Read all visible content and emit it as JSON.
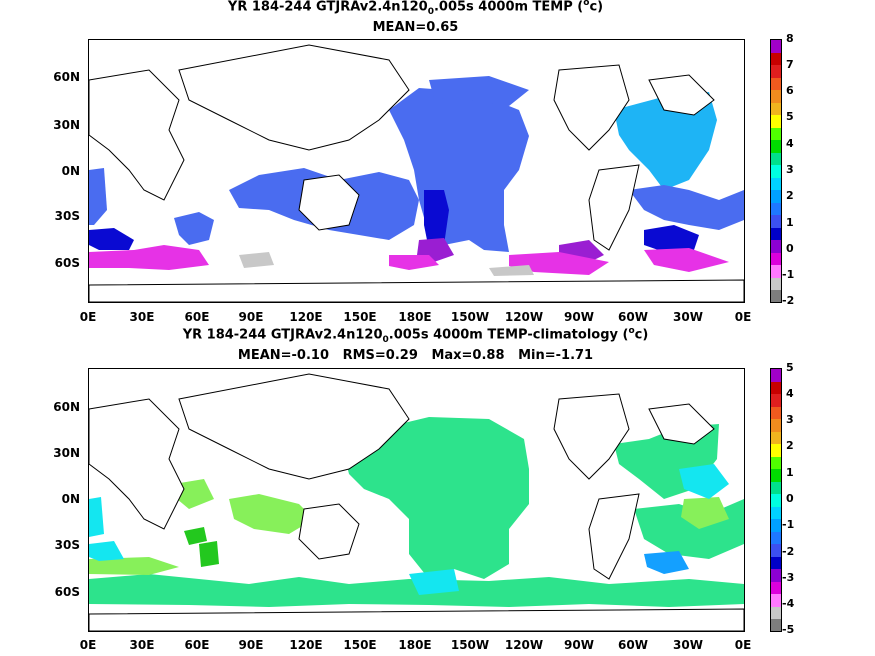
{
  "panel_top": {
    "title_prefix": "YR 184-244 GTJRAv2.4n120",
    "title_sub": "0",
    "title_mid": ".005s 4000m TEMP (",
    "title_sup": "o",
    "title_end": "c)",
    "stats": "MEAN=0.65",
    "colorbar_labels": [
      "8",
      "7",
      "6",
      "5",
      "4",
      "3",
      "2",
      "1",
      "0",
      "-1",
      "-2"
    ],
    "colorbar_colors": [
      "#a000c8",
      "#c80000",
      "#e01e1e",
      "#f05a1e",
      "#f08c1e",
      "#f0b41e",
      "#ffff00",
      "#50ff00",
      "#00dc00",
      "#00e08c",
      "#00ffe0",
      "#00d2ff",
      "#00a0ff",
      "#1e78ff",
      "#3c50f0",
      "#0000c8",
      "#8c00d2",
      "#dc00dc",
      "#ff78ff",
      "#c8c8c8",
      "#7d7d7d"
    ]
  },
  "panel_bottom": {
    "title_prefix": "YR 184-244 GTJRAv2.4n120",
    "title_sub": "0",
    "title_mid": ".005s 4000m TEMP-climatology (",
    "title_sup": "o",
    "title_end": "c)",
    "stats": "MEAN=-0.10   RMS=0.29   Max=0.88   Min=-1.71",
    "colorbar_labels": [
      "5",
      "4",
      "3",
      "2",
      "1",
      "0",
      "-1",
      "-2",
      "-3",
      "-4",
      "-5"
    ],
    "colorbar_colors": [
      "#a000c8",
      "#c80000",
      "#e01e1e",
      "#f05a1e",
      "#f08c1e",
      "#f0b41e",
      "#ffff00",
      "#50ff00",
      "#00dc00",
      "#00e08c",
      "#00ffe0",
      "#00d2ff",
      "#00a0ff",
      "#1e78ff",
      "#3c50f0",
      "#0000c8",
      "#8c00d2",
      "#dc00dc",
      "#ff78ff",
      "#c8c8c8",
      "#7d7d7d"
    ]
  },
  "axes": {
    "lat_labels": [
      "60N",
      "30N",
      "0N",
      "30S",
      "60S"
    ],
    "lon_labels": [
      "0E",
      "30E",
      "60E",
      "90E",
      "120E",
      "150E",
      "180E",
      "150W",
      "120W",
      "90W",
      "60W",
      "30W",
      "0E"
    ]
  },
  "fill_colors": {
    "top_main": "#4a6cf0",
    "top_light": "#1eb4f5",
    "top_dark": "#0a0ad2",
    "top_magenta": "#e632e6",
    "top_purple": "#9a1ed2",
    "top_gray": "#c8c8c8",
    "bot_main": "#2de38c",
    "bot_light": "#87f05a",
    "bot_green": "#23c81e",
    "bot_cyan": "#14e6f0",
    "bot_blue": "#14a0ff"
  }
}
